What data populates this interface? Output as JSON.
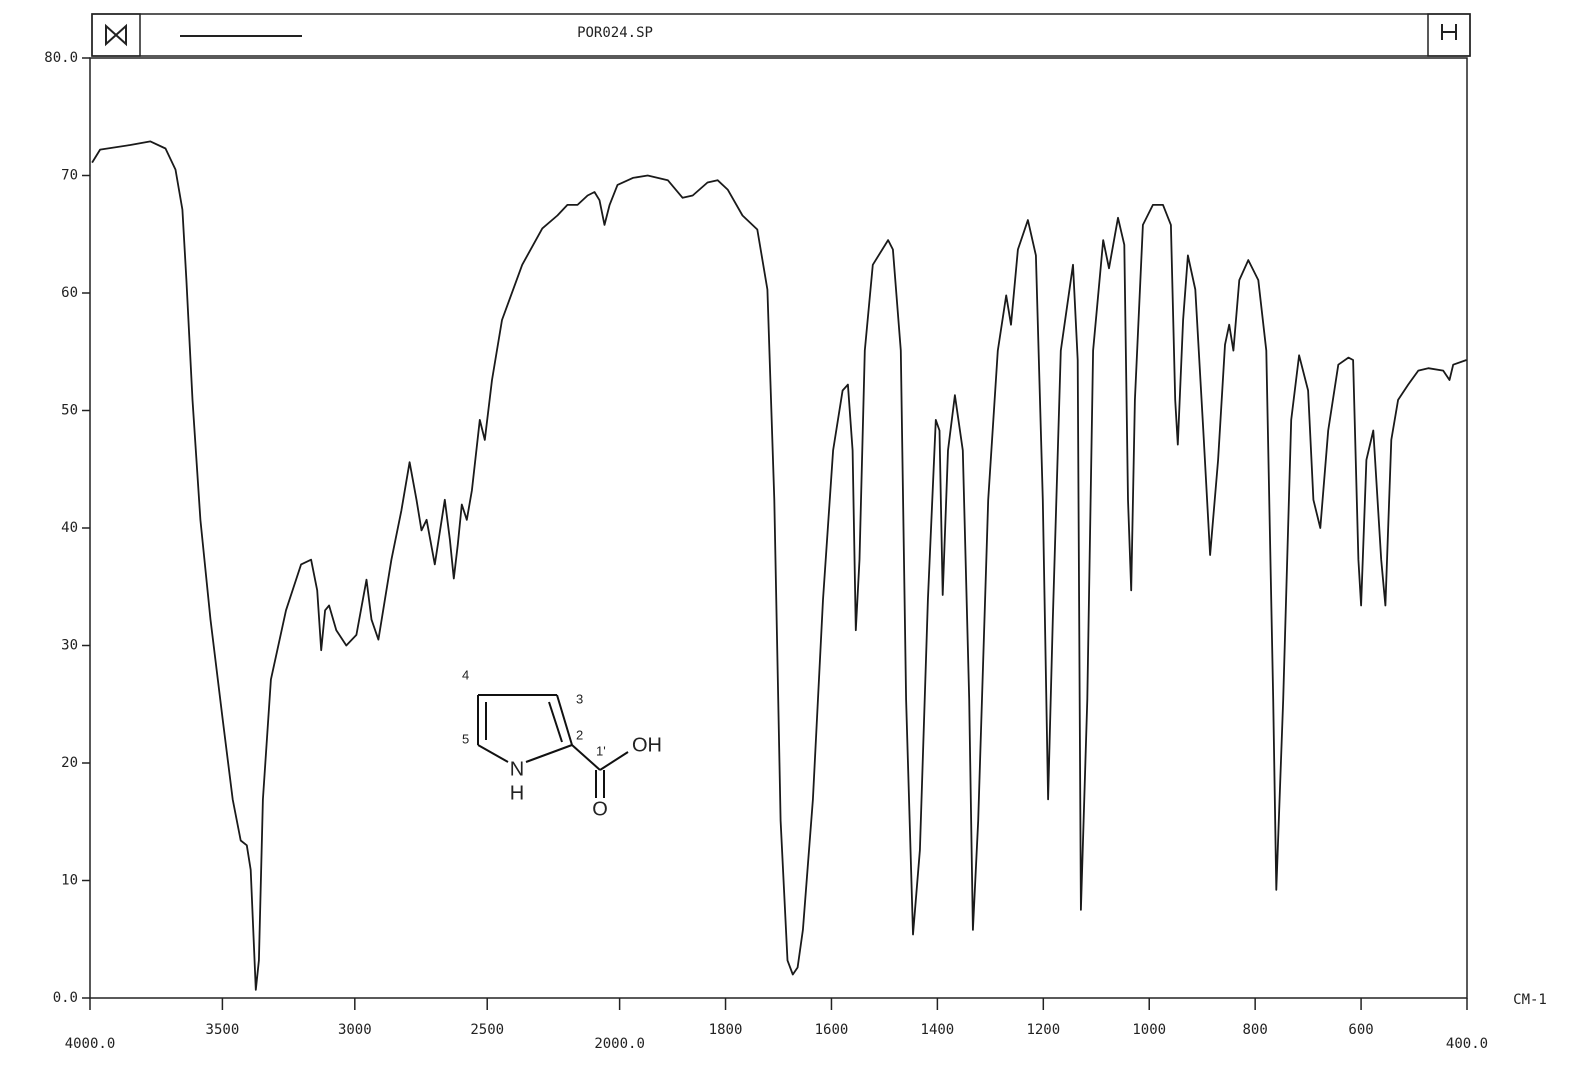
{
  "chart_data": {
    "type": "line",
    "title": "POR024.SP",
    "x_label": "CM-1",
    "x": [
      3992,
      3962,
      3848,
      3772,
      3715,
      3677,
      3651,
      3636,
      3613,
      3583,
      3545,
      3499,
      3461,
      3431,
      3408,
      3393,
      3374,
      3362,
      3347,
      3317,
      3260,
      3203,
      3165,
      3142,
      3127,
      3112,
      3097,
      3070,
      3032,
      2994,
      2956,
      2937,
      2911,
      2862,
      2824,
      2793,
      2767,
      2748,
      2729,
      2698,
      2672,
      2660,
      2641,
      2626,
      2611,
      2596,
      2577,
      2558,
      2528,
      2509,
      2482,
      2444,
      2368,
      2292,
      2235,
      2197,
      2159,
      2121,
      2095,
      2076,
      2057,
      2038,
      2008,
      1975,
      1947,
      1909,
      1881,
      1862,
      1834,
      1815,
      1796,
      1768,
      1740,
      1721,
      1708,
      1696,
      1683,
      1673,
      1664,
      1654,
      1635,
      1616,
      1597,
      1579,
      1569,
      1560,
      1554,
      1547,
      1537,
      1522,
      1493,
      1484,
      1469,
      1459,
      1446,
      1433,
      1418,
      1403,
      1396,
      1390,
      1380,
      1367,
      1352,
      1340,
      1333,
      1323,
      1304,
      1286,
      1270,
      1261,
      1248,
      1229,
      1214,
      1201,
      1191,
      1182,
      1167,
      1144,
      1135,
      1129,
      1117,
      1106,
      1087,
      1076,
      1059,
      1047,
      1040,
      1034,
      1027,
      1012,
      993,
      974,
      959,
      951,
      946,
      936,
      927,
      913,
      898,
      885,
      870,
      857,
      849,
      841,
      830,
      813,
      794,
      779,
      766,
      760,
      747,
      732,
      717,
      700,
      690,
      677,
      662,
      643,
      624,
      615,
      605,
      600,
      590,
      577,
      562,
      554,
      543,
      530,
      511,
      492,
      473,
      445,
      433,
      426,
      401
    ],
    "values": [
      71.1,
      72.2,
      72.6,
      72.9,
      72.3,
      70.5,
      67.1,
      61.1,
      50.9,
      40.7,
      32.2,
      23.7,
      16.9,
      13.4,
      13.0,
      10.9,
      0.7,
      3.2,
      16.9,
      27.1,
      33.0,
      36.9,
      37.3,
      34.7,
      29.6,
      33.0,
      33.4,
      31.3,
      30.0,
      30.9,
      35.6,
      32.2,
      30.5,
      37.3,
      41.5,
      45.6,
      42.4,
      39.8,
      40.7,
      36.9,
      40.7,
      42.4,
      39.0,
      35.7,
      38.6,
      42.0,
      40.7,
      43.2,
      49.2,
      47.5,
      52.6,
      57.7,
      62.4,
      65.5,
      66.6,
      67.5,
      67.5,
      68.3,
      68.6,
      67.9,
      65.8,
      67.5,
      69.2,
      69.8,
      70.0,
      69.6,
      68.1,
      68.3,
      69.4,
      69.6,
      68.8,
      66.6,
      65.4,
      60.3,
      42.4,
      15.1,
      3.2,
      2.0,
      2.6,
      5.8,
      16.9,
      33.9,
      46.6,
      51.7,
      52.2,
      46.6,
      31.3,
      37.3,
      55.1,
      62.4,
      64.5,
      63.7,
      55.1,
      25.4,
      5.4,
      12.6,
      33.9,
      49.2,
      48.3,
      34.3,
      46.6,
      51.3,
      46.6,
      25.4,
      5.8,
      15.1,
      42.4,
      55.1,
      59.8,
      57.3,
      63.7,
      66.2,
      63.2,
      42.4,
      16.9,
      32.2,
      55.1,
      62.4,
      54.3,
      7.5,
      25.4,
      55.1,
      64.5,
      62.1,
      66.4,
      64.1,
      42.4,
      34.7,
      50.9,
      65.8,
      67.5,
      67.5,
      65.8,
      50.9,
      47.1,
      57.7,
      63.2,
      60.3,
      48.3,
      37.7,
      45.8,
      55.6,
      57.3,
      55.1,
      61.1,
      62.8,
      61.1,
      55.1,
      25.4,
      9.2,
      25.4,
      49.2,
      54.7,
      51.7,
      42.4,
      40.0,
      48.3,
      53.9,
      54.5,
      54.3,
      37.3,
      33.4,
      45.8,
      48.3,
      37.3,
      33.4,
      47.5,
      50.9,
      52.2,
      53.4,
      53.6,
      53.4,
      52.6,
      53.9,
      54.3
    ],
    "color": "#1a1a1a",
    "xlim": [
      4000,
      400
    ],
    "ylim": [
      0,
      80
    ],
    "x_expansion": {
      "below": 2000,
      "factor": 2
    },
    "xticks": [
      {
        "value": 4000,
        "label": "4000.0"
      },
      3500,
      3000,
      2500,
      {
        "value": 2000,
        "label": "2000.0"
      },
      1800,
      1600,
      1400,
      1200,
      1000,
      800,
      600,
      {
        "value": 400,
        "label": "400.0"
      }
    ],
    "yticks": [
      {
        "value": 0,
        "label": "0.0"
      },
      10,
      20,
      30,
      40,
      50,
      60,
      70,
      {
        "value": 80,
        "label": "80.0"
      }
    ]
  },
  "structure": {
    "labels": [
      "4",
      "5",
      "3",
      "2",
      "1'",
      "OH",
      "N",
      "H",
      "O"
    ]
  }
}
